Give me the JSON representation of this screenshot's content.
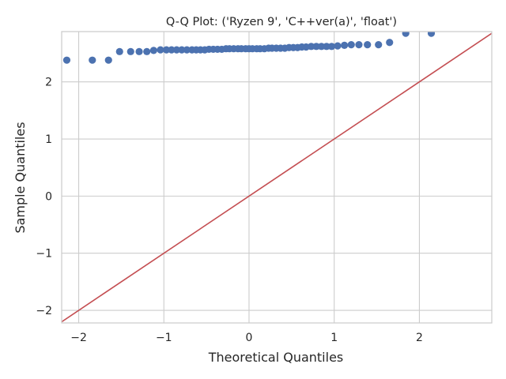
{
  "chart_data": {
    "type": "scatter",
    "title": "Q-Q Plot: ('Ryzen 9', 'C++ver(a)', 'float')",
    "xlabel": "Theoretical Quantiles",
    "ylabel": "Sample Quantiles",
    "xlim": [
      -2.2,
      2.85
    ],
    "ylim": [
      -2.22,
      2.88
    ],
    "xticks": [
      -2,
      -1,
      0,
      1,
      2
    ],
    "yticks": [
      -2,
      -1,
      0,
      1,
      2
    ],
    "xtick_labels": [
      "−2",
      "−1",
      "0",
      "1",
      "2"
    ],
    "ytick_labels": [
      "−2",
      "−1",
      "0",
      "1",
      "2"
    ],
    "grid": true,
    "series": [
      {
        "kind": "points",
        "color": "#4c72b0",
        "x": [
          -2.14,
          -1.84,
          -1.65,
          -1.52,
          -1.39,
          -1.29,
          -1.2,
          -1.12,
          -1.04,
          -0.97,
          -0.91,
          -0.85,
          -0.79,
          -0.73,
          -0.67,
          -0.62,
          -0.57,
          -0.52,
          -0.47,
          -0.42,
          -0.37,
          -0.32,
          -0.27,
          -0.23,
          -0.18,
          -0.13,
          -0.09,
          -0.04,
          0.0,
          0.04,
          0.09,
          0.13,
          0.18,
          0.23,
          0.27,
          0.32,
          0.37,
          0.42,
          0.47,
          0.52,
          0.57,
          0.62,
          0.67,
          0.73,
          0.79,
          0.85,
          0.91,
          0.97,
          1.04,
          1.12,
          1.2,
          1.29,
          1.39,
          1.52,
          1.65,
          1.84,
          2.14
        ],
        "y": [
          2.38,
          2.38,
          2.38,
          2.53,
          2.53,
          2.53,
          2.53,
          2.55,
          2.56,
          2.56,
          2.56,
          2.56,
          2.56,
          2.56,
          2.56,
          2.56,
          2.56,
          2.56,
          2.57,
          2.57,
          2.57,
          2.57,
          2.58,
          2.58,
          2.58,
          2.58,
          2.58,
          2.58,
          2.58,
          2.58,
          2.58,
          2.58,
          2.58,
          2.59,
          2.59,
          2.59,
          2.59,
          2.59,
          2.6,
          2.6,
          2.6,
          2.61,
          2.61,
          2.62,
          2.62,
          2.62,
          2.62,
          2.62,
          2.63,
          2.64,
          2.65,
          2.65,
          2.65,
          2.65,
          2.69,
          2.85,
          2.85
        ]
      },
      {
        "kind": "line",
        "color": "#c44e52",
        "x": [
          -2.2,
          2.85
        ],
        "y": [
          -2.2,
          2.85
        ]
      }
    ]
  }
}
